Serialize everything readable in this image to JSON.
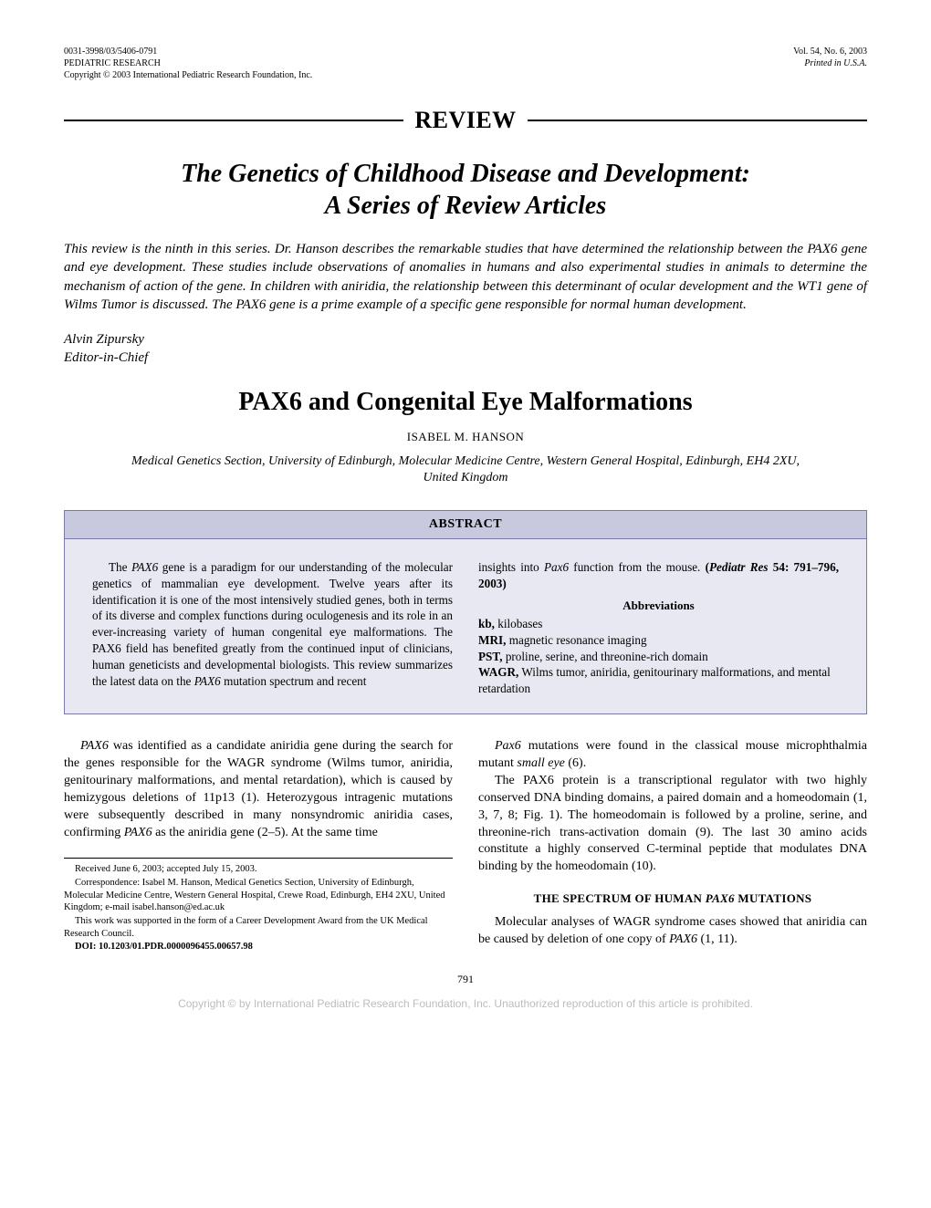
{
  "header": {
    "issn": "0031-3998/03/5406-0791",
    "journal": "PEDIATRIC RESEARCH",
    "copyright": "Copyright © 2003 International Pediatric Research Foundation, Inc.",
    "vol": "Vol. 54, No. 6, 2003",
    "printed": "Printed in U.S.A."
  },
  "review_label": "REVIEW",
  "series": {
    "title_line1": "The Genetics of Childhood Disease and Development:",
    "title_line2": "A Series of Review Articles",
    "intro": "This review is the ninth in this series. Dr. Hanson describes the remarkable studies that have determined the relationship between the PAX6 gene and eye development. These studies include observations of anomalies in humans and also experimental studies in animals to determine the mechanism of action of the gene. In children with aniridia, the relationship between this determinant of ocular development and the WT1 gene of Wilms Tumor is discussed. The PAX6 gene is a prime example of a specific gene responsible for normal human development.",
    "editor_name": "Alvin Zipursky",
    "editor_role": "Editor-in-Chief"
  },
  "article": {
    "title": "PAX6 and Congenital Eye Malformations",
    "author": "ISABEL M. HANSON",
    "affiliation": "Medical Genetics Section, University of Edinburgh, Molecular Medicine Centre, Western General Hospital, Edinburgh, EH4 2XU, United Kingdom"
  },
  "abstract": {
    "heading": "ABSTRACT",
    "left_html": "The <span class=\"ital\">PAX6</span> gene is a paradigm for our understanding of the molecular genetics of mammalian eye development. Twelve years after its identification it is one of the most intensively studied genes, both in terms of its diverse and complex functions during oculogenesis and its role in an ever-increasing variety of human congenital eye malformations. The PAX6 field has benefited greatly from the continued input of clinicians, human geneticists and developmental biologists. This review summarizes the latest data on the <span class=\"ital\">PAX6</span> mutation spectrum and recent",
    "right_top_html": "insights into <span class=\"ital\">Pax6</span> function from the mouse. <span class=\"bold\">(<span class=\"ital\">Pediatr Res</span> 54: 791–796, 2003)</span>",
    "abbrev_title": "Abbreviations",
    "abbrev": {
      "kb": "kb,",
      "kb_def": " kilobases",
      "mri": "MRI,",
      "mri_def": " magnetic resonance imaging",
      "pst": "PST,",
      "pst_def": " proline, serine, and threonine-rich domain",
      "wagr": "WAGR,",
      "wagr_def": " Wilms tumor, aniridia, genitourinary malformations, and mental retardation"
    }
  },
  "body": {
    "left_p1_html": "<span class=\"ital\">PAX6</span> was identified as a candidate aniridia gene during the search for the genes responsible for the WAGR syndrome (Wilms tumor, aniridia, genitourinary malformations, and mental retardation), which is caused by hemizygous deletions of 11p13 (1). Heterozygous intragenic mutations were subsequently described in many nonsyndromic aniridia cases, confirming <span class=\"ital\">PAX6</span> as the aniridia gene (2–5). At the same time",
    "right_p1_html": "<span class=\"ital\">Pax6</span> mutations were found in the classical mouse microphthalmia mutant <span class=\"ital\">small eye</span> (6).",
    "right_p2_html": "The PAX6 protein is a transcriptional regulator with two highly conserved DNA binding domains, a paired domain and a homeodomain (1, 3, 7, 8; Fig. 1). The homeodomain is followed by a proline, serine, and threonine-rich trans-activation domain (9). The last 30 amino acids constitute a highly conserved C-terminal peptide that modulates DNA binding by the homeodomain (10).",
    "section_heading_html": "THE SPECTRUM OF HUMAN <span class=\"ital\">PAX6</span> MUTATIONS",
    "right_p3_html": "Molecular analyses of WAGR syndrome cases showed that aniridia can be caused by deletion of one copy of <span class=\"ital\">PAX6</span> (1, 11)."
  },
  "footnotes": {
    "received": "Received June 6, 2003; accepted July 15, 2003.",
    "correspondence": "Correspondence: Isabel M. Hanson, Medical Genetics Section, University of Edinburgh, Molecular Medicine Centre, Western General Hospital, Crewe Road, Edinburgh, EH4 2XU, United Kingdom; e-mail isabel.hanson@ed.ac.uk",
    "funding": "This work was supported in the form of a Career Development Award from the UK Medical Research Council.",
    "doi": "DOI: 10.1203/01.PDR.0000096455.00657.98"
  },
  "page_number": "791",
  "copyright_footer": "Copyright © by International Pediatric Research Foundation, Inc. Unauthorized reproduction of this article is prohibited."
}
